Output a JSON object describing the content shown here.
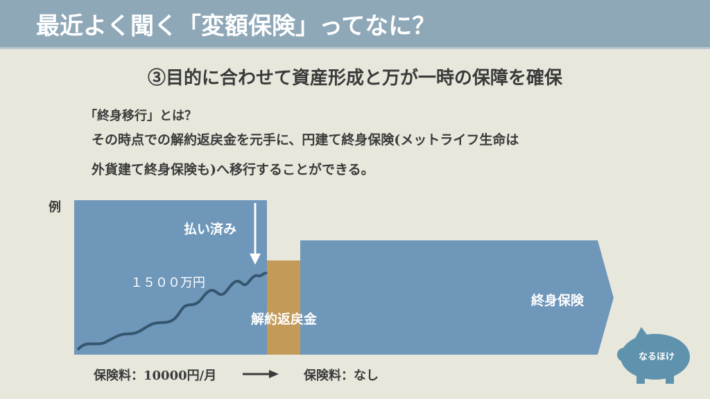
{
  "header": {
    "title": "最近よく聞く「変額保険」ってなに？"
  },
  "subtitle": "③目的に合わせて資産形成と万が一時の保障を確保",
  "definition": {
    "term": "「終身移行」とは？",
    "lines": [
      "その時点での解約返戻金を元手に、円建て終身保険(メットライフ生命は",
      "外貨建て終身保険も)へ移行することができる。"
    ]
  },
  "diagram": {
    "example_label": "例",
    "paid_label": "払い済み",
    "amount_label": "１５００万円",
    "surrender_label": "解約返戻金",
    "whole_life_label": "終身保険"
  },
  "footer": {
    "premium_before": "保険料：10000円/月",
    "premium_after": "保険料：なし"
  },
  "logo": {
    "text": "なるほけ"
  }
}
